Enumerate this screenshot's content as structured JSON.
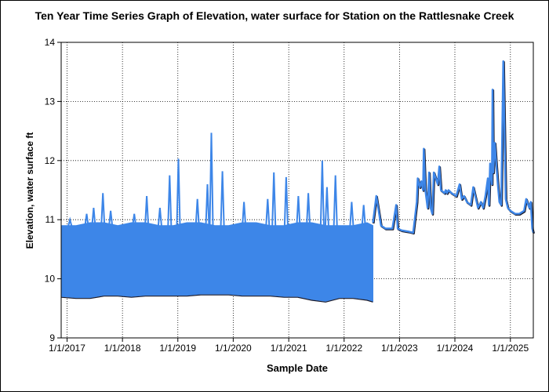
{
  "chart_data": {
    "type": "line",
    "title": "Ten Year Time Series Graph of Elevation, water surface for Station  on the Rattlesnake Creek",
    "xlabel": "Sample Date",
    "ylabel": "Elevation, water surface ft",
    "xlim": [
      "2016-11-23",
      "2025-06-01"
    ],
    "ylim": [
      9,
      14
    ],
    "grid": true,
    "x_ticks": [
      {
        "date": "2017-01-01",
        "label": "1/1/2017"
      },
      {
        "date": "2018-01-01",
        "label": "1/1/2018"
      },
      {
        "date": "2019-01-01",
        "label": "1/1/2019"
      },
      {
        "date": "2020-01-01",
        "label": "1/1/2020"
      },
      {
        "date": "2021-01-01",
        "label": "1/1/2021"
      },
      {
        "date": "2022-01-01",
        "label": "1/1/2022"
      },
      {
        "date": "2023-01-01",
        "label": "1/1/2023"
      },
      {
        "date": "2024-01-01",
        "label": "1/1/2024"
      },
      {
        "date": "2025-01-01",
        "label": "1/1/2025"
      }
    ],
    "y_ticks": [
      9,
      10,
      11,
      12,
      13,
      14
    ],
    "line_color": "#3d86e8",
    "series": [
      {
        "name": "",
        "envelope": {
          "x": [
            "2016-11-23",
            "2017-03-01",
            "2017-06-01",
            "2017-09-01",
            "2017-12-01",
            "2018-03-01",
            "2018-06-01",
            "2018-09-01",
            "2018-12-01",
            "2019-03-01",
            "2019-06-01",
            "2019-09-01",
            "2019-12-01",
            "2020-03-01",
            "2020-06-01",
            "2020-09-01",
            "2020-12-01",
            "2021-03-01",
            "2021-06-01",
            "2021-09-01",
            "2021-12-01",
            "2022-03-01",
            "2022-06-01",
            "2022-07-10"
          ],
          "upper": [
            10.9,
            10.9,
            10.95,
            10.95,
            10.9,
            10.95,
            10.95,
            10.9,
            10.9,
            10.95,
            10.95,
            10.9,
            10.9,
            10.95,
            10.95,
            10.9,
            10.9,
            10.95,
            10.95,
            10.9,
            10.9,
            10.9,
            10.95,
            10.9
          ],
          "lower": [
            9.7,
            9.68,
            9.68,
            9.72,
            9.72,
            9.7,
            9.72,
            9.72,
            9.72,
            9.72,
            9.74,
            9.74,
            9.74,
            9.72,
            9.72,
            9.72,
            9.7,
            9.7,
            9.65,
            9.62,
            9.68,
            9.68,
            9.65,
            9.62
          ]
        },
        "spikes": [
          {
            "x": "2017-01-20",
            "y": 11.0
          },
          {
            "x": "2017-05-10",
            "y": 11.1
          },
          {
            "x": "2017-06-25",
            "y": 11.2
          },
          {
            "x": "2017-08-25",
            "y": 11.45
          },
          {
            "x": "2017-10-15",
            "y": 11.15
          },
          {
            "x": "2018-03-20",
            "y": 11.1
          },
          {
            "x": "2018-06-10",
            "y": 11.4
          },
          {
            "x": "2018-09-05",
            "y": 11.2
          },
          {
            "x": "2018-11-08",
            "y": 11.75
          },
          {
            "x": "2019-01-05",
            "y": 12.03
          },
          {
            "x": "2019-05-10",
            "y": 11.35
          },
          {
            "x": "2019-07-15",
            "y": 11.6
          },
          {
            "x": "2019-08-10",
            "y": 12.47
          },
          {
            "x": "2019-10-22",
            "y": 11.82
          },
          {
            "x": "2020-03-12",
            "y": 11.3
          },
          {
            "x": "2020-08-15",
            "y": 11.35
          },
          {
            "x": "2020-09-25",
            "y": 11.8
          },
          {
            "x": "2020-12-15",
            "y": 11.72
          },
          {
            "x": "2021-03-05",
            "y": 11.4
          },
          {
            "x": "2021-05-10",
            "y": 11.45
          },
          {
            "x": "2021-08-10",
            "y": 12.0
          },
          {
            "x": "2021-09-10",
            "y": 11.55
          },
          {
            "x": "2021-11-05",
            "y": 11.75
          },
          {
            "x": "2022-02-20",
            "y": 11.3
          },
          {
            "x": "2022-05-10",
            "y": 11.25
          }
        ],
        "trace": {
          "x": [
            "2022-07-10",
            "2022-08-01",
            "2022-09-01",
            "2022-10-01",
            "2022-11-15",
            "2022-12-10",
            "2022-12-20",
            "2023-01-15",
            "2023-03-01",
            "2023-04-01",
            "2023-04-25",
            "2023-05-01",
            "2023-05-15",
            "2023-05-25",
            "2023-06-05",
            "2023-06-10",
            "2023-06-20",
            "2023-07-05",
            "2023-07-15",
            "2023-07-25",
            "2023-08-05",
            "2023-08-15",
            "2023-09-10",
            "2023-09-20",
            "2023-10-01",
            "2023-10-25",
            "2023-11-01",
            "2023-11-10",
            "2023-11-20",
            "2023-12-10",
            "2024-01-10",
            "2024-02-01",
            "2024-02-15",
            "2024-03-01",
            "2024-03-20",
            "2024-04-15",
            "2024-05-01",
            "2024-06-01",
            "2024-06-20",
            "2024-07-05",
            "2024-07-20",
            "2024-08-05",
            "2024-08-12",
            "2024-08-20",
            "2024-09-01",
            "2024-09-05",
            "2024-09-10",
            "2024-09-20",
            "2024-10-01",
            "2024-10-10",
            "2024-10-20",
            "2024-11-01",
            "2024-11-15",
            "2024-12-01",
            "2024-12-15",
            "2025-01-01",
            "2025-02-01",
            "2025-03-01",
            "2025-04-01",
            "2025-04-15",
            "2025-05-05",
            "2025-05-15",
            "2025-05-25",
            "2025-06-01"
          ],
          "y": [
            10.95,
            11.4,
            10.9,
            10.85,
            10.85,
            11.25,
            10.85,
            10.82,
            10.8,
            10.78,
            11.3,
            11.7,
            11.55,
            11.65,
            11.5,
            12.2,
            11.5,
            11.2,
            11.8,
            11.2,
            11.1,
            11.8,
            11.6,
            11.9,
            11.5,
            11.45,
            11.5,
            11.45,
            11.5,
            11.45,
            11.4,
            11.6,
            11.35,
            11.4,
            11.3,
            11.25,
            11.55,
            11.2,
            11.3,
            11.2,
            11.4,
            11.7,
            11.25,
            11.95,
            11.6,
            13.2,
            11.8,
            12.3,
            11.9,
            11.6,
            11.3,
            11.25,
            13.68,
            11.35,
            11.2,
            11.15,
            11.1,
            11.1,
            11.15,
            11.35,
            11.2,
            11.3,
            10.85,
            10.78
          ]
        }
      }
    ]
  }
}
